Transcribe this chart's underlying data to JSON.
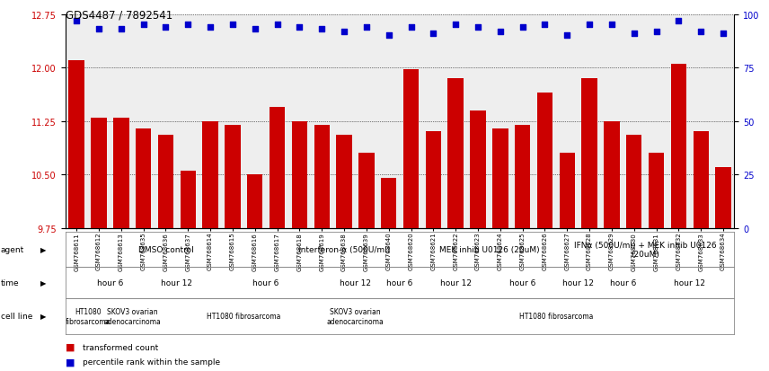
{
  "title": "GDS4487 / 7892541",
  "samples": [
    "GSM768611",
    "GSM768612",
    "GSM768613",
    "GSM768635",
    "GSM768636",
    "GSM768637",
    "GSM768614",
    "GSM768615",
    "GSM768616",
    "GSM768617",
    "GSM768618",
    "GSM768619",
    "GSM768638",
    "GSM768639",
    "GSM768640",
    "GSM768620",
    "GSM768621",
    "GSM768622",
    "GSM768623",
    "GSM768624",
    "GSM768625",
    "GSM768626",
    "GSM768627",
    "GSM768628",
    "GSM768629",
    "GSM768630",
    "GSM768631",
    "GSM768632",
    "GSM768633",
    "GSM768634"
  ],
  "bar_values": [
    12.1,
    11.3,
    11.3,
    11.15,
    11.05,
    10.55,
    11.25,
    11.2,
    10.5,
    11.45,
    11.25,
    11.2,
    11.05,
    10.8,
    10.45,
    11.97,
    11.1,
    11.85,
    11.4,
    11.15,
    11.2,
    11.65,
    10.8,
    11.85,
    11.25,
    11.05,
    10.8,
    12.05,
    11.1,
    10.6
  ],
  "percentile_values": [
    97,
    93,
    93,
    95,
    94,
    95,
    94,
    95,
    93,
    95,
    94,
    93,
    92,
    94,
    90,
    94,
    91,
    95,
    94,
    92,
    94,
    95,
    90,
    95,
    95,
    91,
    92,
    97,
    92,
    91
  ],
  "bar_color": "#cc0000",
  "percentile_color": "#0000cc",
  "ylim_left": [
    9.75,
    12.75
  ],
  "ylim_right": [
    0,
    100
  ],
  "yticks_left": [
    9.75,
    10.5,
    11.25,
    12.0,
    12.75
  ],
  "yticks_right": [
    0,
    25,
    50,
    75,
    100
  ],
  "agent_regions": [
    {
      "label": "DMSO control",
      "start": 0,
      "end": 9,
      "color": "#b8e6b8"
    },
    {
      "label": "interferon-α (500U/ml)",
      "start": 9,
      "end": 16,
      "color": "#88dd88"
    },
    {
      "label": "MEK inhib U0126 (20uM)",
      "start": 16,
      "end": 22,
      "color": "#66cc66"
    },
    {
      "label": "IFNα (500U/ml) + MEK inhib U0126\n(20uM)",
      "start": 22,
      "end": 30,
      "color": "#44bb44"
    }
  ],
  "time_regions": [
    {
      "label": "hour 6",
      "start": 0,
      "end": 4,
      "color": "#bbaaee"
    },
    {
      "label": "hour 12",
      "start": 4,
      "end": 6,
      "color": "#8866cc"
    },
    {
      "label": "hour 6",
      "start": 6,
      "end": 12,
      "color": "#bbaaee"
    },
    {
      "label": "hour 12",
      "start": 12,
      "end": 14,
      "color": "#8866cc"
    },
    {
      "label": "hour 6",
      "start": 14,
      "end": 16,
      "color": "#bbaaee"
    },
    {
      "label": "hour 12",
      "start": 16,
      "end": 19,
      "color": "#8866cc"
    },
    {
      "label": "hour 6",
      "start": 19,
      "end": 22,
      "color": "#bbaaee"
    },
    {
      "label": "hour 12",
      "start": 22,
      "end": 24,
      "color": "#8866cc"
    },
    {
      "label": "hour 6",
      "start": 24,
      "end": 26,
      "color": "#bbaaee"
    },
    {
      "label": "hour 12",
      "start": 26,
      "end": 30,
      "color": "#8866cc"
    }
  ],
  "cell_regions": [
    {
      "label": "HT1080\nfibrosarcoma",
      "start": 0,
      "end": 2,
      "color": "#ffcccc"
    },
    {
      "label": "SKOV3 ovarian\nadenocarcinoma",
      "start": 2,
      "end": 4,
      "color": "#ffaaaa"
    },
    {
      "label": "HT1080 fibrosarcoma",
      "start": 4,
      "end": 12,
      "color": "#ffcccc"
    },
    {
      "label": "SKOV3 ovarian\nadenocarcinoma",
      "start": 12,
      "end": 14,
      "color": "#ffaaaa"
    },
    {
      "label": "HT1080 fibrosarcoma",
      "start": 14,
      "end": 30,
      "color": "#ffcccc"
    }
  ]
}
